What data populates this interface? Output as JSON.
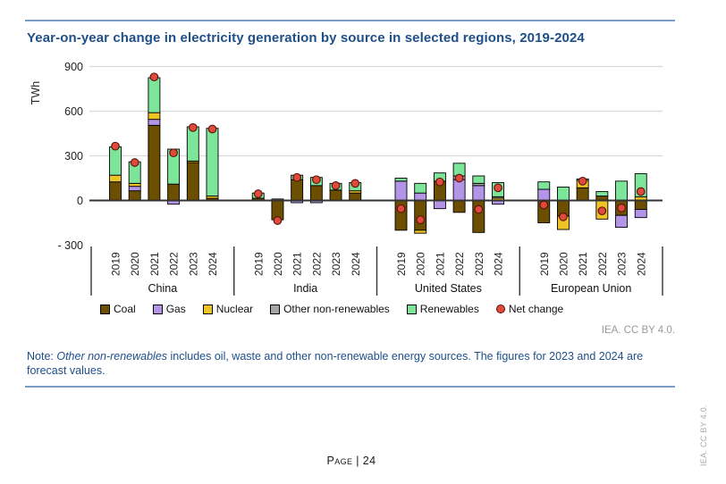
{
  "page": {
    "title": "Year-on-year change in electricity generation by source in selected regions, 2019-2024",
    "credit": "IEA. CC BY 4.0.",
    "side_credit": "IEA. CC BY 4.0.",
    "page_label": "Page | 24",
    "note": {
      "prefix": "Note: ",
      "italic": "Other non-renewables",
      "rest": " includes oil, waste and other non-renewable energy sources. The figures for 2023 and 2024 are forecast values."
    }
  },
  "chart_data": {
    "type": "bar",
    "stacked": true,
    "title": "Year-on-year change in electricity generation by source in selected regions, 2019-2024",
    "unit": "TWh",
    "ylabel": "TWh",
    "ylim": [
      -300,
      900
    ],
    "yticks": [
      900,
      600,
      300,
      0,
      -300
    ],
    "ytick_labels": [
      "900",
      "600",
      "300",
      "0",
      "- 300"
    ],
    "grid": "horizontal-at-positive-ticks",
    "legend_position": "bottom",
    "years": [
      "2019",
      "2020",
      "2021",
      "2022",
      "2023",
      "2024"
    ],
    "series_order": [
      "coal",
      "gas",
      "nuclear",
      "other",
      "renewables"
    ],
    "series_labels": {
      "coal": "Coal",
      "gas": "Gas",
      "nuclear": "Nuclear",
      "other": "Other non-renewables",
      "renewables": "Renewables",
      "net": "Net change"
    },
    "colors": {
      "coal": "#6b4e00",
      "gas": "#b394e6",
      "nuclear": "#eec424",
      "other": "#a6a6a6",
      "renewables": "#7de59a",
      "net": "#e04a3c",
      "net_stroke": "#551008",
      "axis": "#333333",
      "grid": "#d9d9d9",
      "accent_blue": "#1e4f8a",
      "rule_blue": "#7d9cc3"
    },
    "regions": [
      {
        "name": "China",
        "values": {
          "coal": [
            125,
            65,
            505,
            110,
            255,
            15
          ],
          "gas": [
            0,
            30,
            40,
            -25,
            0,
            0
          ],
          "nuclear": [
            45,
            20,
            45,
            0,
            10,
            15
          ],
          "other": [
            0,
            0,
            0,
            0,
            0,
            0
          ],
          "renewables": [
            190,
            145,
            235,
            235,
            230,
            455
          ],
          "net": [
            365,
            255,
            830,
            320,
            490,
            480
          ]
        }
      },
      {
        "name": "India",
        "values": {
          "coal": [
            15,
            -130,
            140,
            100,
            70,
            50
          ],
          "gas": [
            0,
            0,
            -15,
            -15,
            0,
            0
          ],
          "nuclear": [
            0,
            0,
            0,
            0,
            0,
            15
          ],
          "other": [
            0,
            10,
            0,
            0,
            0,
            0
          ],
          "renewables": [
            35,
            0,
            30,
            55,
            45,
            55
          ],
          "net": [
            45,
            -135,
            155,
            140,
            100,
            115
          ]
        }
      },
      {
        "name": "United States",
        "values": {
          "coal": [
            -200,
            -200,
            130,
            -80,
            -215,
            0
          ],
          "gas": [
            130,
            50,
            -55,
            140,
            100,
            -25
          ],
          "nuclear": [
            0,
            -20,
            0,
            0,
            0,
            15
          ],
          "other": [
            0,
            0,
            0,
            25,
            15,
            10
          ],
          "renewables": [
            20,
            65,
            55,
            85,
            50,
            95
          ],
          "net": [
            -55,
            -130,
            125,
            150,
            -60,
            85
          ]
        }
      },
      {
        "name": "European Union",
        "values": {
          "coal": [
            -150,
            -105,
            85,
            30,
            -100,
            -60
          ],
          "gas": [
            75,
            0,
            0,
            0,
            -80,
            -55
          ],
          "nuclear": [
            0,
            -90,
            50,
            -125,
            0,
            25
          ],
          "other": [
            0,
            0,
            0,
            0,
            0,
            0
          ],
          "renewables": [
            50,
            90,
            10,
            30,
            130,
            155
          ],
          "net": [
            -30,
            -110,
            130,
            -70,
            -50,
            60
          ]
        }
      }
    ]
  }
}
